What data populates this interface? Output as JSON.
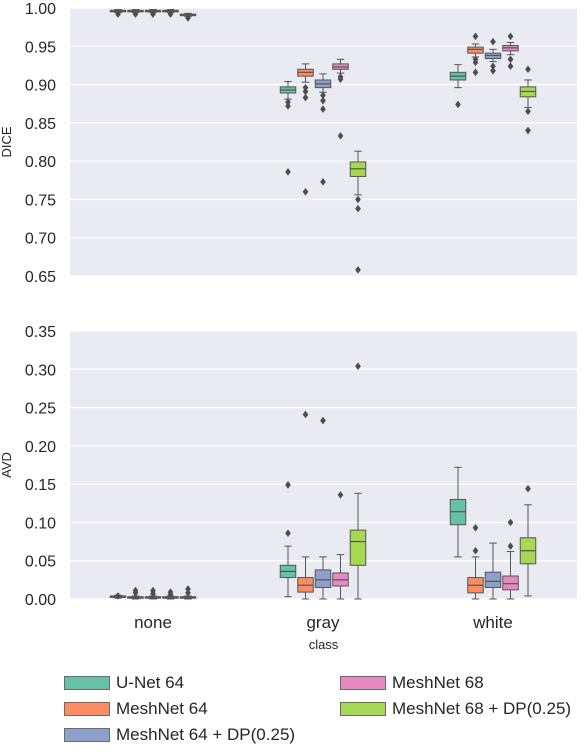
{
  "chart_data": [
    {
      "type": "box",
      "panel": "top",
      "ylabel": "DICE",
      "xlabel": "",
      "ylim": [
        0.65,
        1.0
      ],
      "yticks": [
        "0.65",
        "0.70",
        "0.75",
        "0.80",
        "0.85",
        "0.90",
        "0.95",
        "1.00"
      ],
      "categories": [
        "none",
        "gray",
        "white"
      ],
      "grid": true,
      "series": [
        {
          "name": "U-Net 64",
          "color": "#66c2a5",
          "boxes": [
            {
              "q1": 0.995,
              "median": 0.996,
              "q3": 0.997,
              "lo": 0.994,
              "hi": 0.998,
              "outliers": [
                0.992
              ]
            },
            {
              "q1": 0.889,
              "median": 0.893,
              "q3": 0.897,
              "lo": 0.881,
              "hi": 0.904,
              "outliers": [
                0.877,
                0.872,
                0.786
              ]
            },
            {
              "q1": 0.906,
              "median": 0.911,
              "q3": 0.916,
              "lo": 0.896,
              "hi": 0.926,
              "outliers": [
                0.874
              ]
            }
          ]
        },
        {
          "name": "MeshNet 64",
          "color": "#fc8d62",
          "boxes": [
            {
              "q1": 0.995,
              "median": 0.996,
              "q3": 0.997,
              "lo": 0.994,
              "hi": 0.998,
              "outliers": [
                0.992
              ]
            },
            {
              "q1": 0.911,
              "median": 0.916,
              "q3": 0.92,
              "lo": 0.903,
              "hi": 0.927,
              "outliers": [
                0.896,
                0.891,
                0.883,
                0.76
              ]
            },
            {
              "q1": 0.941,
              "median": 0.946,
              "q3": 0.949,
              "lo": 0.936,
              "hi": 0.953,
              "outliers": [
                0.963,
                0.933,
                0.929,
                0.916
              ]
            }
          ]
        },
        {
          "name": "MeshNet 64 + DP(0.25)",
          "color": "#8da0cb",
          "boxes": [
            {
              "q1": 0.995,
              "median": 0.996,
              "q3": 0.997,
              "lo": 0.994,
              "hi": 0.998,
              "outliers": [
                0.992
              ]
            },
            {
              "q1": 0.896,
              "median": 0.901,
              "q3": 0.906,
              "lo": 0.89,
              "hi": 0.914,
              "outliers": [
                0.886,
                0.879,
                0.868,
                0.773
              ]
            },
            {
              "q1": 0.934,
              "median": 0.938,
              "q3": 0.941,
              "lo": 0.93,
              "hi": 0.946,
              "outliers": [
                0.956,
                0.924,
                0.918
              ]
            }
          ]
        },
        {
          "name": "MeshNet 68",
          "color": "#e78ac3",
          "boxes": [
            {
              "q1": 0.995,
              "median": 0.996,
              "q3": 0.997,
              "lo": 0.994,
              "hi": 0.998,
              "outliers": [
                0.992
              ]
            },
            {
              "q1": 0.92,
              "median": 0.923,
              "q3": 0.927,
              "lo": 0.915,
              "hi": 0.933,
              "outliers": [
                0.91,
                0.907,
                0.833
              ]
            },
            {
              "q1": 0.944,
              "median": 0.948,
              "q3": 0.951,
              "lo": 0.939,
              "hi": 0.955,
              "outliers": [
                0.963,
                0.933,
                0.924
              ]
            }
          ]
        },
        {
          "name": "MeshNet 68 + DP(0.25)",
          "color": "#a6d854",
          "boxes": [
            {
              "q1": 0.99,
              "median": 0.991,
              "q3": 0.992,
              "lo": 0.989,
              "hi": 0.993,
              "outliers": [
                0.987
              ]
            },
            {
              "q1": 0.78,
              "median": 0.79,
              "q3": 0.799,
              "lo": 0.756,
              "hi": 0.813,
              "outliers": [
                0.75,
                0.738,
                0.658
              ]
            },
            {
              "q1": 0.884,
              "median": 0.891,
              "q3": 0.897,
              "lo": 0.87,
              "hi": 0.906,
              "outliers": [
                0.92,
                0.865,
                0.84
              ]
            }
          ]
        }
      ]
    },
    {
      "type": "box",
      "panel": "bottom",
      "ylabel": "AVD",
      "xlabel": "class",
      "ylim": [
        0.0,
        0.35
      ],
      "yticks": [
        "0.00",
        "0.05",
        "0.10",
        "0.15",
        "0.20",
        "0.25",
        "0.30",
        "0.35"
      ],
      "categories": [
        "none",
        "gray",
        "white"
      ],
      "grid": true,
      "series": [
        {
          "name": "U-Net 64",
          "color": "#66c2a5",
          "boxes": [
            {
              "q1": 0.002,
              "median": 0.003,
              "q3": 0.004,
              "lo": 0.001,
              "hi": 0.005,
              "outliers": [
                0.004
              ]
            },
            {
              "q1": 0.028,
              "median": 0.036,
              "q3": 0.044,
              "lo": 0.003,
              "hi": 0.069,
              "outliers": [
                0.086,
                0.149
              ]
            },
            {
              "q1": 0.097,
              "median": 0.114,
              "q3": 0.13,
              "lo": 0.055,
              "hi": 0.172,
              "outliers": []
            }
          ]
        },
        {
          "name": "MeshNet 64",
          "color": "#fc8d62",
          "boxes": [
            {
              "q1": 0.001,
              "median": 0.002,
              "q3": 0.003,
              "lo": 0.0,
              "hi": 0.004,
              "outliers": [
                0.008,
                0.011
              ]
            },
            {
              "q1": 0.009,
              "median": 0.018,
              "q3": 0.028,
              "lo": 0.0,
              "hi": 0.055,
              "outliers": [
                0.241
              ]
            },
            {
              "q1": 0.008,
              "median": 0.018,
              "q3": 0.028,
              "lo": 0.0,
              "hi": 0.055,
              "outliers": [
                0.063,
                0.093
              ]
            }
          ]
        },
        {
          "name": "MeshNet 64 + DP(0.25)",
          "color": "#8da0cb",
          "boxes": [
            {
              "q1": 0.001,
              "median": 0.002,
              "q3": 0.003,
              "lo": 0.0,
              "hi": 0.004,
              "outliers": [
                0.007,
                0.011
              ]
            },
            {
              "q1": 0.015,
              "median": 0.025,
              "q3": 0.038,
              "lo": 0.0,
              "hi": 0.055,
              "outliers": [
                0.233
              ]
            },
            {
              "q1": 0.015,
              "median": 0.023,
              "q3": 0.035,
              "lo": 0.0,
              "hi": 0.073,
              "outliers": []
            }
          ]
        },
        {
          "name": "MeshNet 68",
          "color": "#e78ac3",
          "boxes": [
            {
              "q1": 0.001,
              "median": 0.002,
              "q3": 0.003,
              "lo": 0.0,
              "hi": 0.004,
              "outliers": [
                0.006,
                0.009
              ]
            },
            {
              "q1": 0.017,
              "median": 0.025,
              "q3": 0.034,
              "lo": 0.0,
              "hi": 0.058,
              "outliers": [
                0.136
              ]
            },
            {
              "q1": 0.012,
              "median": 0.02,
              "q3": 0.03,
              "lo": 0.0,
              "hi": 0.062,
              "outliers": [
                0.069,
                0.1
              ]
            }
          ]
        },
        {
          "name": "MeshNet 68 + DP(0.25)",
          "color": "#a6d854",
          "boxes": [
            {
              "q1": 0.001,
              "median": 0.002,
              "q3": 0.003,
              "lo": 0.0,
              "hi": 0.004,
              "outliers": [
                0.008,
                0.013
              ]
            },
            {
              "q1": 0.044,
              "median": 0.075,
              "q3": 0.09,
              "lo": 0.0,
              "hi": 0.138,
              "outliers": [
                0.304
              ]
            },
            {
              "q1": 0.046,
              "median": 0.063,
              "q3": 0.08,
              "lo": 0.004,
              "hi": 0.123,
              "outliers": [
                0.144
              ]
            }
          ]
        }
      ]
    }
  ],
  "legend": {
    "placement": "bottom",
    "items": [
      {
        "label": "U-Net 64",
        "color": "#66c2a5"
      },
      {
        "label": "MeshNet 64",
        "color": "#fc8d62"
      },
      {
        "label": "MeshNet 64 + DP(0.25)",
        "color": "#8da0cb"
      },
      {
        "label": "MeshNet 68",
        "color": "#e78ac3"
      },
      {
        "label": "MeshNet 68 + DP(0.25)",
        "color": "#a6d854"
      }
    ]
  },
  "style": {
    "axes_background": "#eaeaf2",
    "grid_color": "#ffffff",
    "line_color": "#555555",
    "text_color": "#262626"
  }
}
